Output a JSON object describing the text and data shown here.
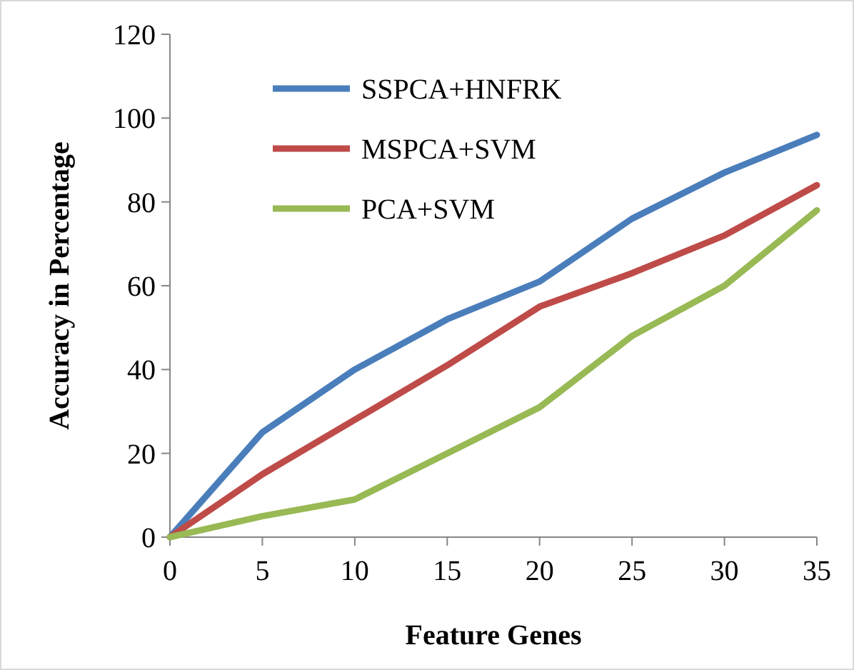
{
  "chart_data": {
    "type": "line",
    "xlabel": "Feature Genes",
    "ylabel": "Accuracy in Percentage",
    "x": [
      0,
      5,
      10,
      15,
      20,
      25,
      30,
      35
    ],
    "xlim": [
      0,
      35
    ],
    "xticks": [
      0,
      5,
      10,
      15,
      20,
      25,
      30,
      35
    ],
    "ylim": [
      0,
      120
    ],
    "yticks": [
      0,
      20,
      40,
      60,
      80,
      100,
      120
    ],
    "grid": false,
    "legend": "top left",
    "marker": "none",
    "line_style": "solid",
    "series": [
      {
        "name": "SSPCA+HNFRK",
        "color": "#4a7ebb",
        "values": [
          0,
          25,
          40,
          52,
          61,
          76,
          87,
          96
        ]
      },
      {
        "name": "MSPCA+SVM",
        "color": "#be4b48",
        "values": [
          0,
          15,
          28,
          41,
          55,
          63,
          72,
          84
        ]
      },
      {
        "name": "PCA+SVM",
        "color": "#98b954",
        "values": [
          0,
          5,
          9,
          20,
          31,
          48,
          60,
          78
        ]
      }
    ]
  }
}
